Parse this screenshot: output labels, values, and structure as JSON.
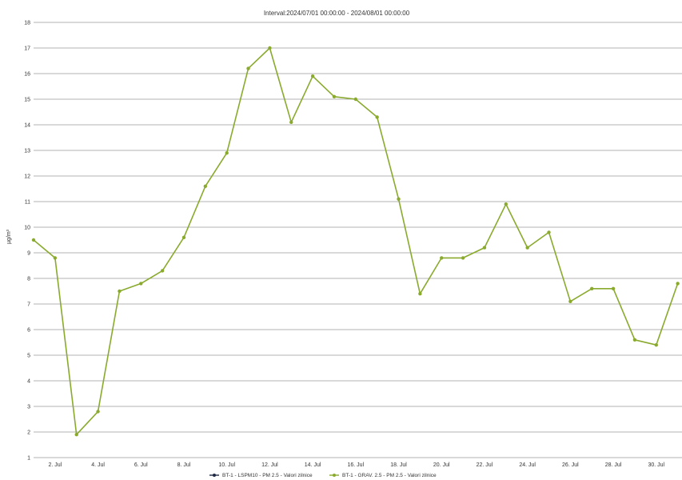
{
  "chart_data": {
    "type": "line",
    "title": "Interval:2024/07/01 00:00:00 - 2024/08/01 00:00:00",
    "xlabel": "",
    "ylabel": "µg/m³",
    "ylim": [
      1,
      18
    ],
    "yticks": [
      "1",
      "2",
      "3",
      "4",
      "5",
      "6",
      "7",
      "8",
      "9",
      "10",
      "11",
      "12",
      "13",
      "14",
      "15",
      "16",
      "17",
      "18"
    ],
    "xticks": [
      {
        "day": 2,
        "label": "2. Jul"
      },
      {
        "day": 4,
        "label": "4. Jul"
      },
      {
        "day": 6,
        "label": "6. Jul"
      },
      {
        "day": 8,
        "label": "8. Jul"
      },
      {
        "day": 10,
        "label": "10. Jul"
      },
      {
        "day": 12,
        "label": "12. Jul"
      },
      {
        "day": 14,
        "label": "14. Jul"
      },
      {
        "day": 16,
        "label": "16. Jul"
      },
      {
        "day": 18,
        "label": "18. Jul"
      },
      {
        "day": 20,
        "label": "20. Jul"
      },
      {
        "day": 22,
        "label": "22. Jul"
      },
      {
        "day": 24,
        "label": "24. Jul"
      },
      {
        "day": 26,
        "label": "26. Jul"
      },
      {
        "day": 28,
        "label": "28. Jul"
      },
      {
        "day": 30,
        "label": "30. Jul"
      }
    ],
    "grid": true,
    "legend_position": "bottom",
    "series": [
      {
        "name": "BT-1 - LSPM10 - PM 2.5 - Valori zilnice",
        "color": "#1f2a44",
        "x": [],
        "values": []
      },
      {
        "name": "BT-1 - GRAV. 2.5 - PM 2.5 - Valori zilnice",
        "color": "#8aaa2e",
        "x": [
          1,
          2,
          3,
          4,
          5,
          6,
          7,
          8,
          9,
          10,
          11,
          12,
          13,
          14,
          15,
          16,
          17,
          18,
          19,
          20,
          21,
          22,
          23,
          24,
          25,
          26,
          27,
          28,
          29,
          30,
          31
        ],
        "values": [
          9.5,
          8.8,
          1.9,
          2.8,
          7.5,
          7.8,
          8.3,
          9.6,
          11.6,
          12.9,
          16.2,
          17.0,
          14.1,
          15.9,
          15.1,
          15.0,
          14.3,
          11.1,
          7.4,
          8.8,
          8.8,
          9.2,
          10.9,
          9.2,
          9.8,
          7.1,
          7.6,
          7.6,
          5.6,
          5.4,
          7.8
        ]
      }
    ]
  }
}
